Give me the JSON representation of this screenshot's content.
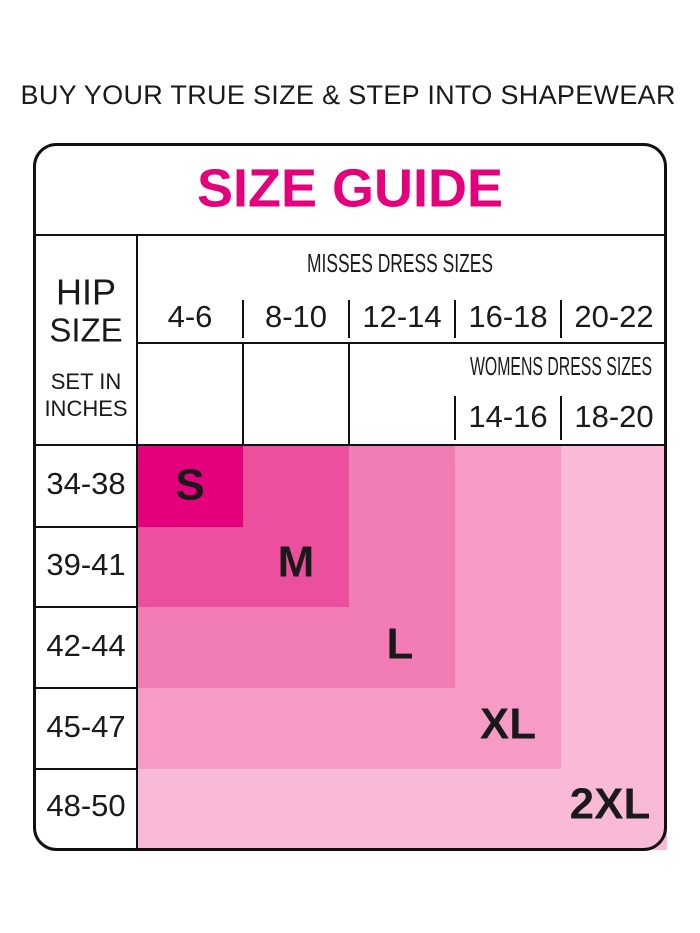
{
  "tagline": "BUY YOUR TRUE SIZE & STEP INTO SHAPEWEAR",
  "title": "SIZE GUIDE",
  "hip_header": {
    "line1": "HIP",
    "line2": "SIZE",
    "line3": "SET IN",
    "line4": "INCHES"
  },
  "misses": {
    "title": "MISSES DRESS SIZES",
    "sizes": [
      "4-6",
      "8-10",
      "12-14",
      "16-18",
      "20-22"
    ]
  },
  "womens": {
    "title": "WOMENS DRESS SIZES",
    "sizes": [
      "14-16",
      "18-20"
    ]
  },
  "hip_rows": [
    "34-38",
    "39-41",
    "42-44",
    "45-47",
    "48-50"
  ],
  "size_labels": [
    "S",
    "M",
    "L",
    "XL",
    "2XL"
  ]
}
